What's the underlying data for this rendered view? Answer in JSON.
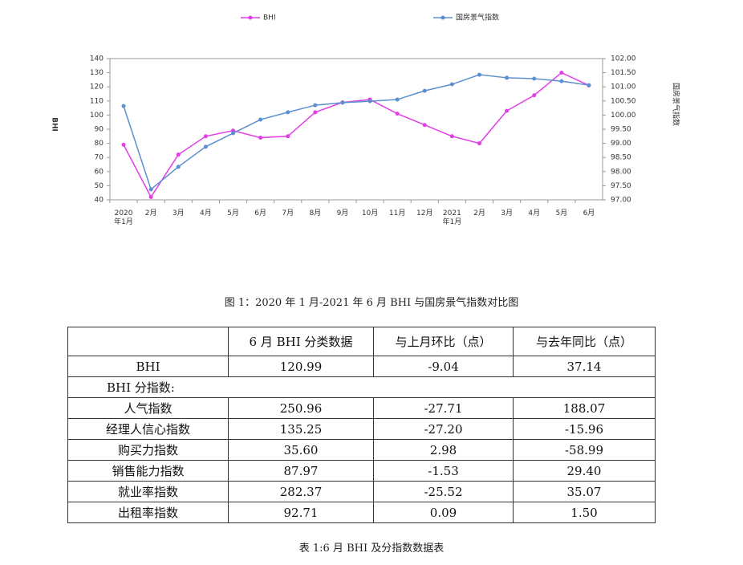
{
  "chart_data": {
    "type": "line",
    "categories": [
      "2020年1月",
      "2月",
      "3月",
      "4月",
      "5月",
      "6月",
      "7月",
      "8月",
      "9月",
      "10月",
      "11月",
      "12月",
      "2021年1月",
      "2月",
      "3月",
      "4月",
      "5月",
      "6月"
    ],
    "y_label": "BHI",
    "y2_label": "国房景气指数",
    "series": [
      {
        "name": "BHI",
        "color": "#e23ee6",
        "values": [
          79,
          42,
          72,
          85,
          89,
          84,
          85,
          102,
          109,
          111,
          101,
          93,
          85,
          80,
          103,
          114,
          130,
          121
        ]
      },
      {
        "name": "国房景气指数",
        "color": "#5b8fd0",
        "axis": "y2",
        "values": [
          100.32,
          97.37,
          98.17,
          98.88,
          99.36,
          99.84,
          100.1,
          100.35,
          100.44,
          100.49,
          100.55,
          100.86,
          101.09,
          101.43,
          101.32,
          101.29,
          101.2,
          101.06
        ]
      }
    ],
    "ylim": [
      40,
      140
    ],
    "yticks": [
      40,
      50,
      60,
      70,
      80,
      90,
      100,
      110,
      120,
      130,
      140
    ],
    "y2lim": [
      97,
      102
    ],
    "y2ticks": [
      {
        "value": 97,
        "label": "97.00"
      },
      {
        "value": 97.5,
        "label": "97.50"
      },
      {
        "value": 98,
        "label": "98.00"
      },
      {
        "value": 98.5,
        "label": "98.50"
      },
      {
        "value": 99,
        "label": "99.00"
      },
      {
        "value": 99.5,
        "label": "99.50"
      },
      {
        "value": 100,
        "label": "100.00"
      },
      {
        "value": 100.5,
        "label": "100.50"
      },
      {
        "value": 101,
        "label": "101.00"
      },
      {
        "value": 101.5,
        "label": "101.50"
      },
      {
        "value": 102,
        "label": "102.00"
      }
    ],
    "grid": false,
    "legend": "top"
  },
  "figure_caption": "图 1：2020 年 1 月-2021 年 6 月 BHI 与国房景气指数对比图",
  "table": {
    "header": [
      "6 月 BHI 分类数据",
      "与上月环比（点）",
      "与去年同比（点）"
    ],
    "rows": [
      [
        "BHI",
        "120.99",
        "-9.04",
        "37.14"
      ]
    ],
    "section": "BHI 分指数:",
    "sub_rows": [
      [
        "人气指数",
        "250.96",
        "-27.71",
        "188.07"
      ],
      [
        "经理人信心指数",
        "135.25",
        "-27.20",
        "-15.96"
      ],
      [
        "购买力指数",
        "35.60",
        "2.98",
        "-58.99"
      ],
      [
        "销售能力指数",
        "87.97",
        "-1.53",
        "29.40"
      ],
      [
        "就业率指数",
        "282.37",
        "-25.52",
        "35.07"
      ],
      [
        "出租率指数",
        "92.71",
        "0.09",
        "1.50"
      ]
    ],
    "caption": "表 1:6 月 BHI 及分指数数据表"
  }
}
